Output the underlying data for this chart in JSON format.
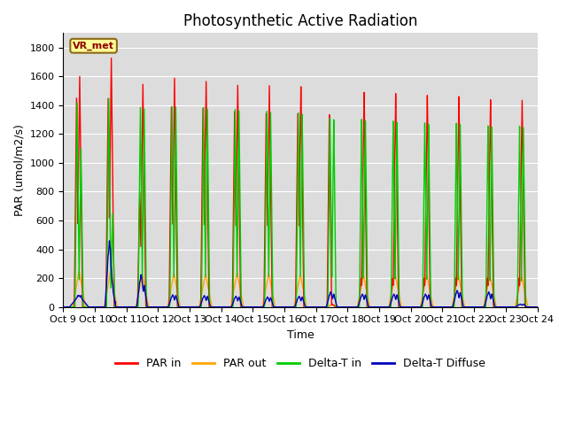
{
  "title": "Photosynthetic Active Radiation",
  "ylabel": "PAR (umol/m2/s)",
  "xlabel": "Time",
  "xlim": [
    0,
    15
  ],
  "ylim": [
    0,
    1900
  ],
  "yticks": [
    0,
    200,
    400,
    600,
    800,
    1000,
    1200,
    1400,
    1600,
    1800
  ],
  "xtick_labels": [
    "Oct 9",
    "Oct 10",
    "Oct 11",
    "Oct 12",
    "Oct 13",
    "Oct 14",
    "Oct 15",
    "Oct 16",
    "Oct 17",
    "Oct 18",
    "Oct 19",
    "Oct 20",
    "Oct 21",
    "Oct 22",
    "Oct 23",
    "Oct 24"
  ],
  "xtick_positions": [
    0,
    1,
    2,
    3,
    4,
    5,
    6,
    7,
    8,
    9,
    10,
    11,
    12,
    13,
    14,
    15
  ],
  "colors": {
    "par_in": "#FF0000",
    "par_out": "#FFA500",
    "delta_t_in": "#00CC00",
    "delta_t_diffuse": "#0000BB"
  },
  "legend_labels": [
    "PAR in",
    "PAR out",
    "Delta-T in",
    "Delta-T Diffuse"
  ],
  "vr_met_label": "VR_met",
  "plot_bg_color": "#DCDCDC",
  "fig_bg_color": "#FFFFFF",
  "title_fontsize": 12,
  "axis_label_fontsize": 9,
  "tick_fontsize": 8,
  "grid_color": "#FFFFFF",
  "linewidth": 1.0,
  "n_days": 15,
  "pts_per_day": 500,
  "par_in_peaks": [
    1600,
    1730,
    1550,
    1595,
    1575,
    1550,
    1550,
    1545,
    20,
    1500,
    1490,
    1475,
    1465,
    1440,
    1435
  ],
  "par_in_peak2": [
    1450,
    1450,
    800,
    1395,
    1390,
    1370,
    1360,
    1360,
    1350,
    200,
    200,
    200,
    200,
    200,
    200
  ],
  "par_out_peaks": [
    255,
    255,
    230,
    235,
    232,
    240,
    235,
    228,
    15,
    220,
    230,
    228,
    225,
    222,
    220
  ],
  "delta_t_in_peaks": [
    1420,
    1450,
    1390,
    1400,
    1395,
    1385,
    1375,
    1365,
    1325,
    1315,
    1300,
    1285,
    1280,
    1260,
    1255
  ],
  "delta_t_in_peak2": [
    1100,
    650,
    1380,
    1395,
    1385,
    1375,
    1365,
    1355,
    1315,
    1305,
    1290,
    1275,
    1270,
    1250,
    1245
  ],
  "delta_t_diffuse_peaks": [
    80,
    460,
    225,
    85,
    80,
    75,
    70,
    75,
    105,
    90,
    90,
    90,
    115,
    105,
    20
  ],
  "delta_t_diffuse_peak2": [
    80,
    130,
    150,
    80,
    75,
    70,
    65,
    70,
    90,
    85,
    85,
    85,
    100,
    90,
    20
  ]
}
